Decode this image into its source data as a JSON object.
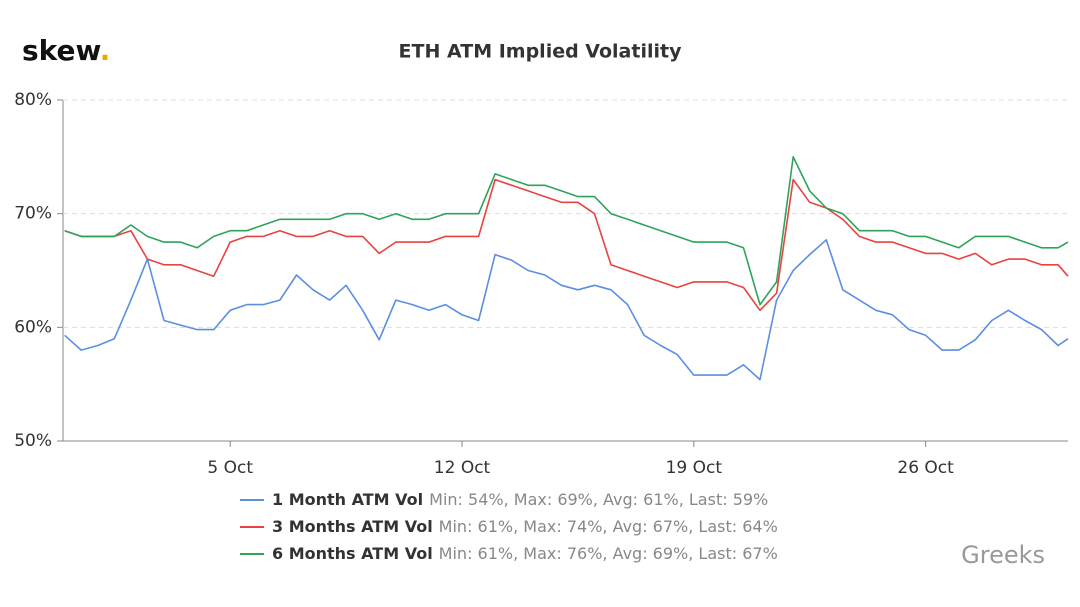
{
  "logo": {
    "text": "skew",
    "dot": "."
  },
  "watermark": "Greeks",
  "chart_data": {
    "type": "line",
    "title": "ETH ATM Implied Volatility",
    "x": [
      0,
      0.5,
      1,
      1.5,
      2,
      2.5,
      3,
      3.5,
      4,
      4.5,
      5,
      5.5,
      6,
      6.5,
      7,
      7.5,
      8,
      8.5,
      9,
      9.5,
      10,
      10.5,
      11,
      11.5,
      12,
      12.5,
      13,
      13.5,
      14,
      14.5,
      15,
      15.5,
      16,
      16.5,
      17,
      17.5,
      18,
      18.5,
      19,
      19.5,
      20,
      20.5,
      21,
      21.5,
      22,
      22.5,
      23,
      23.5,
      24,
      24.5,
      25,
      25.5,
      26,
      26.5,
      27,
      27.5,
      28,
      28.5,
      29,
      29.5,
      30,
      30.3
    ],
    "xlim": [
      -0.05,
      30.3
    ],
    "xticks": [
      {
        "value": 5,
        "label": "5 Oct"
      },
      {
        "value": 12,
        "label": "12 Oct"
      },
      {
        "value": 19,
        "label": "19 Oct"
      },
      {
        "value": 26,
        "label": "26 Oct"
      }
    ],
    "ylim": [
      50,
      80
    ],
    "yticks": [
      {
        "value": 50,
        "label": "50%"
      },
      {
        "value": 60,
        "label": "60%"
      },
      {
        "value": 70,
        "label": "70%"
      },
      {
        "value": 80,
        "label": "80%"
      }
    ],
    "grid": true,
    "series": [
      {
        "name": "1 Month ATM Vol",
        "stats": "Min: 54%, Max: 69%, Avg: 61%, Last: 59%",
        "color": "#5b8fe0",
        "values": [
          59.3,
          58,
          58.4,
          59,
          62.4,
          66,
          60.6,
          60.2,
          59.8,
          59.8,
          61.5,
          62,
          62,
          62.4,
          64.6,
          63.3,
          62.4,
          63.7,
          61.5,
          58.9,
          62.4,
          62,
          61.5,
          62,
          61.1,
          60.6,
          66.4,
          65.9,
          65,
          64.6,
          63.7,
          63.3,
          63.7,
          63.3,
          62,
          59.3,
          58.4,
          57.6,
          55.8,
          55.8,
          55.8,
          56.7,
          55.4,
          62.4,
          65,
          66.4,
          67.7,
          63.3,
          62.4,
          61.5,
          61.1,
          59.8,
          59.3,
          58,
          58,
          58.9,
          60.6,
          61.5,
          60.6,
          59.8,
          58.4,
          59
        ]
      },
      {
        "name": "3 Months ATM Vol",
        "stats": "Min: 61%, Max: 74%, Avg: 67%, Last: 64%",
        "color": "#e8433f",
        "values": [
          68.5,
          68,
          68,
          68,
          68.5,
          66,
          65.5,
          65.5,
          65,
          64.5,
          67.5,
          68,
          68,
          68.5,
          68,
          68,
          68.5,
          68,
          68,
          66.5,
          67.5,
          67.5,
          67.5,
          68,
          68,
          68,
          73,
          72.5,
          72,
          71.5,
          71,
          71,
          70,
          65.5,
          65,
          64.5,
          64,
          63.5,
          64,
          64,
          64,
          63.5,
          61.5,
          63,
          73,
          71,
          70.5,
          69.5,
          68,
          67.5,
          67.5,
          67,
          66.5,
          66.5,
          66,
          66.5,
          65.5,
          66,
          66,
          65.5,
          65.5,
          64.5
        ]
      },
      {
        "name": "6 Months ATM Vol",
        "stats": "Min: 61%, Max: 76%, Avg: 69%, Last: 67%",
        "color": "#2fa35a",
        "values": [
          68.5,
          68,
          68,
          68,
          69,
          68,
          67.5,
          67.5,
          67,
          68,
          68.5,
          68.5,
          69,
          69.5,
          69.5,
          69.5,
          69.5,
          70,
          70,
          69.5,
          70,
          69.5,
          69.5,
          70,
          70,
          70,
          73.5,
          73,
          72.5,
          72.5,
          72,
          71.5,
          71.5,
          70,
          69.5,
          69,
          68.5,
          68,
          67.5,
          67.5,
          67.5,
          67,
          62,
          64,
          75,
          72,
          70.5,
          70,
          68.5,
          68.5,
          68.5,
          68,
          68,
          67.5,
          67,
          68,
          68,
          68,
          67.5,
          67,
          67,
          67.5
        ]
      }
    ]
  }
}
